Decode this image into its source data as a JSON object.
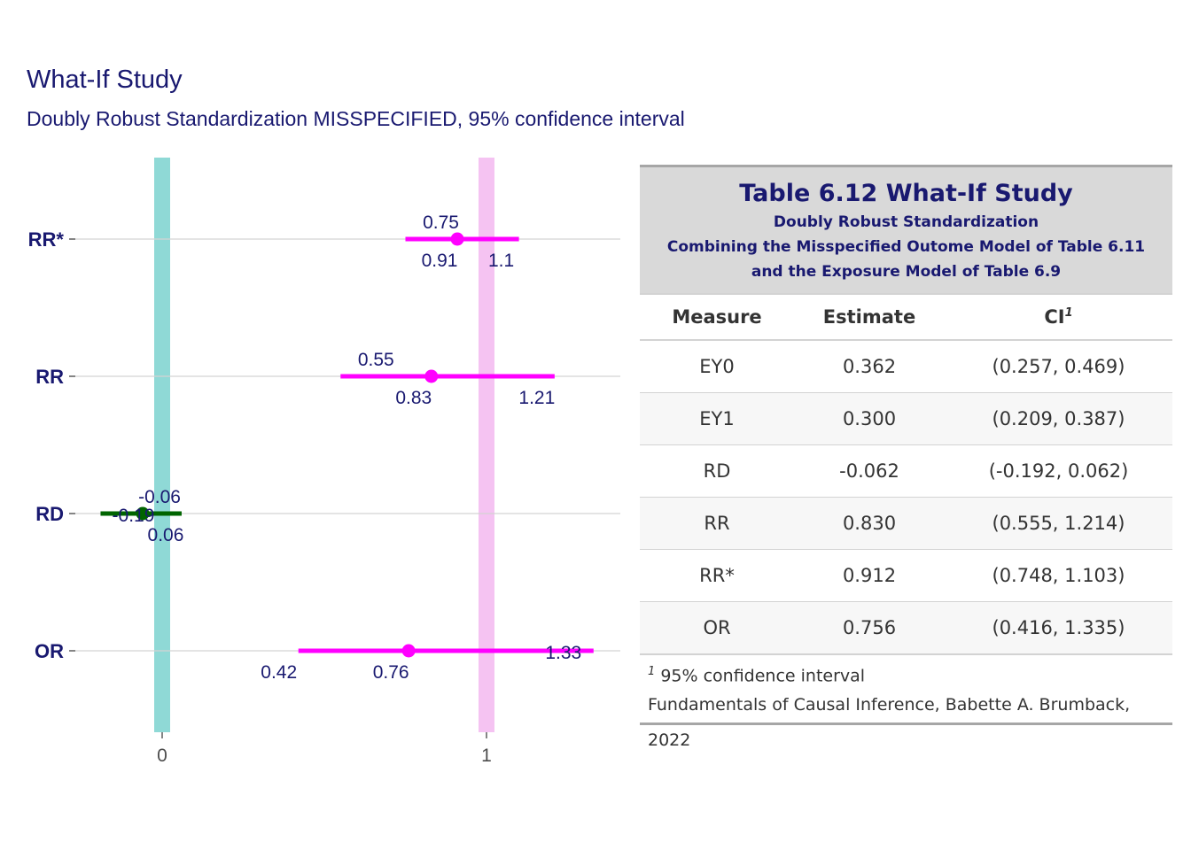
{
  "title": "What-If Study",
  "subtitle": "Doubly Robust Standardization MISSPECIFIED, 95% confidence interval",
  "colors": {
    "text": "#191970",
    "estimate": "#ff00ff",
    "rd": "#006400",
    "ref_zero": "#8fd9d6",
    "ref_one": "#f5c3f2",
    "grid": "#d3d3d3"
  },
  "chart_data": {
    "type": "forest",
    "x_ticks": [
      "0",
      "1"
    ],
    "xlim": [
      -0.19,
      1.4
    ],
    "reference_lines": [
      0,
      1
    ],
    "rows": [
      {
        "measure": "RR*",
        "estimate": 0.91,
        "lower": 0.75,
        "upper": 1.1,
        "est_label": "0.91",
        "lo_label": "0.75",
        "hi_label": "1.1",
        "color": "#ff00ff"
      },
      {
        "measure": "RR",
        "estimate": 0.83,
        "lower": 0.55,
        "upper": 1.21,
        "est_label": "0.83",
        "lo_label": "0.55",
        "hi_label": "1.21",
        "color": "#ff00ff"
      },
      {
        "measure": "RD",
        "estimate": -0.06,
        "lower": -0.19,
        "upper": 0.06,
        "est_label": "-0.06",
        "lo_label": "-0.19",
        "hi_label": "0.06",
        "color": "#006400"
      },
      {
        "measure": "OR",
        "estimate": 0.76,
        "lower": 0.42,
        "upper": 1.33,
        "est_label": "0.76",
        "lo_label": "0.42",
        "hi_label": "1.33",
        "color": "#ff00ff"
      }
    ]
  },
  "table": {
    "title": "Table 6.12 What-If Study",
    "subtitle_lines": [
      "Doubly Robust Standardization",
      "Combining the Misspecified Outome Model of Table 6.11",
      "and the Exposure Model of Table 6.9"
    ],
    "columns": [
      "Measure",
      "Estimate",
      "CI"
    ],
    "ci_footnote_mark": "1",
    "rows": [
      {
        "measure": "EY0",
        "estimate": "0.362",
        "ci": "(0.257, 0.469)"
      },
      {
        "measure": "EY1",
        "estimate": "0.300",
        "ci": "(0.209, 0.387)"
      },
      {
        "measure": "RD",
        "estimate": "-0.062",
        "ci": "(-0.192, 0.062)"
      },
      {
        "measure": "RR",
        "estimate": "0.830",
        "ci": "(0.555, 1.214)"
      },
      {
        "measure": "RR*",
        "estimate": "0.912",
        "ci": "(0.748, 1.103)"
      },
      {
        "measure": "OR",
        "estimate": "0.756",
        "ci": "(0.416, 1.335)"
      }
    ],
    "footnote_mark": "1",
    "footnote": "95% confidence interval",
    "source": "Fundamentals of Causal Inference, Babette A. Brumback, 2022"
  }
}
